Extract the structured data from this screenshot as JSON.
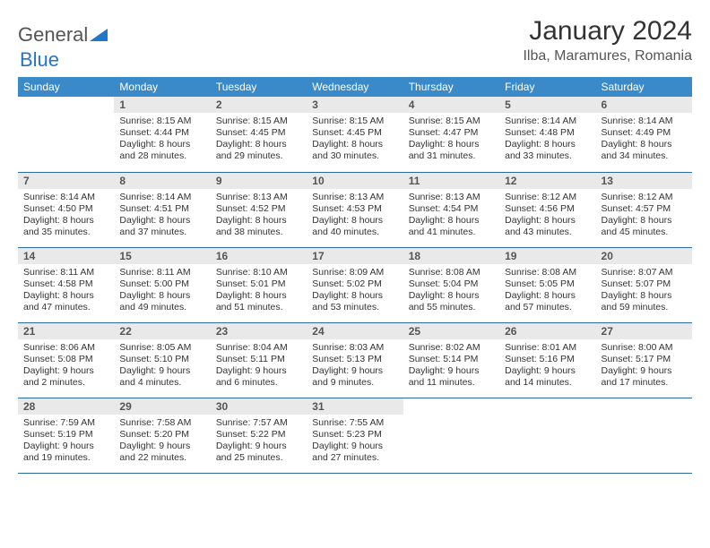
{
  "brand": {
    "part1": "General",
    "part2": "Blue"
  },
  "title": "January 2024",
  "location": "Ilba, Maramures, Romania",
  "colors": {
    "header_bg": "#3a8ac9",
    "daynum_bg": "#e9e9e9",
    "row_border": "#2b6aa0",
    "logo_blue": "#2176c7",
    "text": "#333333"
  },
  "weekdays": [
    "Sunday",
    "Monday",
    "Tuesday",
    "Wednesday",
    "Thursday",
    "Friday",
    "Saturday"
  ],
  "weeks": [
    [
      null,
      {
        "n": "1",
        "sr": "Sunrise: 8:15 AM",
        "ss": "Sunset: 4:44 PM",
        "d1": "Daylight: 8 hours",
        "d2": "and 28 minutes."
      },
      {
        "n": "2",
        "sr": "Sunrise: 8:15 AM",
        "ss": "Sunset: 4:45 PM",
        "d1": "Daylight: 8 hours",
        "d2": "and 29 minutes."
      },
      {
        "n": "3",
        "sr": "Sunrise: 8:15 AM",
        "ss": "Sunset: 4:45 PM",
        "d1": "Daylight: 8 hours",
        "d2": "and 30 minutes."
      },
      {
        "n": "4",
        "sr": "Sunrise: 8:15 AM",
        "ss": "Sunset: 4:47 PM",
        "d1": "Daylight: 8 hours",
        "d2": "and 31 minutes."
      },
      {
        "n": "5",
        "sr": "Sunrise: 8:14 AM",
        "ss": "Sunset: 4:48 PM",
        "d1": "Daylight: 8 hours",
        "d2": "and 33 minutes."
      },
      {
        "n": "6",
        "sr": "Sunrise: 8:14 AM",
        "ss": "Sunset: 4:49 PM",
        "d1": "Daylight: 8 hours",
        "d2": "and 34 minutes."
      }
    ],
    [
      {
        "n": "7",
        "sr": "Sunrise: 8:14 AM",
        "ss": "Sunset: 4:50 PM",
        "d1": "Daylight: 8 hours",
        "d2": "and 35 minutes."
      },
      {
        "n": "8",
        "sr": "Sunrise: 8:14 AM",
        "ss": "Sunset: 4:51 PM",
        "d1": "Daylight: 8 hours",
        "d2": "and 37 minutes."
      },
      {
        "n": "9",
        "sr": "Sunrise: 8:13 AM",
        "ss": "Sunset: 4:52 PM",
        "d1": "Daylight: 8 hours",
        "d2": "and 38 minutes."
      },
      {
        "n": "10",
        "sr": "Sunrise: 8:13 AM",
        "ss": "Sunset: 4:53 PM",
        "d1": "Daylight: 8 hours",
        "d2": "and 40 minutes."
      },
      {
        "n": "11",
        "sr": "Sunrise: 8:13 AM",
        "ss": "Sunset: 4:54 PM",
        "d1": "Daylight: 8 hours",
        "d2": "and 41 minutes."
      },
      {
        "n": "12",
        "sr": "Sunrise: 8:12 AM",
        "ss": "Sunset: 4:56 PM",
        "d1": "Daylight: 8 hours",
        "d2": "and 43 minutes."
      },
      {
        "n": "13",
        "sr": "Sunrise: 8:12 AM",
        "ss": "Sunset: 4:57 PM",
        "d1": "Daylight: 8 hours",
        "d2": "and 45 minutes."
      }
    ],
    [
      {
        "n": "14",
        "sr": "Sunrise: 8:11 AM",
        "ss": "Sunset: 4:58 PM",
        "d1": "Daylight: 8 hours",
        "d2": "and 47 minutes."
      },
      {
        "n": "15",
        "sr": "Sunrise: 8:11 AM",
        "ss": "Sunset: 5:00 PM",
        "d1": "Daylight: 8 hours",
        "d2": "and 49 minutes."
      },
      {
        "n": "16",
        "sr": "Sunrise: 8:10 AM",
        "ss": "Sunset: 5:01 PM",
        "d1": "Daylight: 8 hours",
        "d2": "and 51 minutes."
      },
      {
        "n": "17",
        "sr": "Sunrise: 8:09 AM",
        "ss": "Sunset: 5:02 PM",
        "d1": "Daylight: 8 hours",
        "d2": "and 53 minutes."
      },
      {
        "n": "18",
        "sr": "Sunrise: 8:08 AM",
        "ss": "Sunset: 5:04 PM",
        "d1": "Daylight: 8 hours",
        "d2": "and 55 minutes."
      },
      {
        "n": "19",
        "sr": "Sunrise: 8:08 AM",
        "ss": "Sunset: 5:05 PM",
        "d1": "Daylight: 8 hours",
        "d2": "and 57 minutes."
      },
      {
        "n": "20",
        "sr": "Sunrise: 8:07 AM",
        "ss": "Sunset: 5:07 PM",
        "d1": "Daylight: 8 hours",
        "d2": "and 59 minutes."
      }
    ],
    [
      {
        "n": "21",
        "sr": "Sunrise: 8:06 AM",
        "ss": "Sunset: 5:08 PM",
        "d1": "Daylight: 9 hours",
        "d2": "and 2 minutes."
      },
      {
        "n": "22",
        "sr": "Sunrise: 8:05 AM",
        "ss": "Sunset: 5:10 PM",
        "d1": "Daylight: 9 hours",
        "d2": "and 4 minutes."
      },
      {
        "n": "23",
        "sr": "Sunrise: 8:04 AM",
        "ss": "Sunset: 5:11 PM",
        "d1": "Daylight: 9 hours",
        "d2": "and 6 minutes."
      },
      {
        "n": "24",
        "sr": "Sunrise: 8:03 AM",
        "ss": "Sunset: 5:13 PM",
        "d1": "Daylight: 9 hours",
        "d2": "and 9 minutes."
      },
      {
        "n": "25",
        "sr": "Sunrise: 8:02 AM",
        "ss": "Sunset: 5:14 PM",
        "d1": "Daylight: 9 hours",
        "d2": "and 11 minutes."
      },
      {
        "n": "26",
        "sr": "Sunrise: 8:01 AM",
        "ss": "Sunset: 5:16 PM",
        "d1": "Daylight: 9 hours",
        "d2": "and 14 minutes."
      },
      {
        "n": "27",
        "sr": "Sunrise: 8:00 AM",
        "ss": "Sunset: 5:17 PM",
        "d1": "Daylight: 9 hours",
        "d2": "and 17 minutes."
      }
    ],
    [
      {
        "n": "28",
        "sr": "Sunrise: 7:59 AM",
        "ss": "Sunset: 5:19 PM",
        "d1": "Daylight: 9 hours",
        "d2": "and 19 minutes."
      },
      {
        "n": "29",
        "sr": "Sunrise: 7:58 AM",
        "ss": "Sunset: 5:20 PM",
        "d1": "Daylight: 9 hours",
        "d2": "and 22 minutes."
      },
      {
        "n": "30",
        "sr": "Sunrise: 7:57 AM",
        "ss": "Sunset: 5:22 PM",
        "d1": "Daylight: 9 hours",
        "d2": "and 25 minutes."
      },
      {
        "n": "31",
        "sr": "Sunrise: 7:55 AM",
        "ss": "Sunset: 5:23 PM",
        "d1": "Daylight: 9 hours",
        "d2": "and 27 minutes."
      },
      null,
      null,
      null
    ]
  ]
}
